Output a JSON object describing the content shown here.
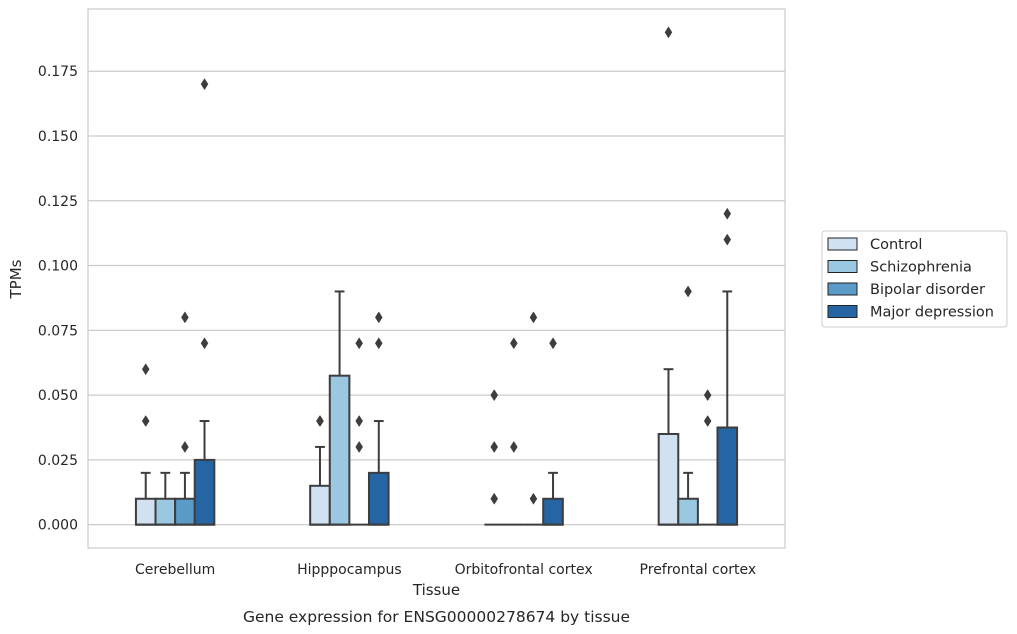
{
  "caption": "Gene expression for ENSG00000278674 by tissue",
  "chart_data": {
    "type": "box",
    "xlabel": "Tissue",
    "ylabel": "TPMs",
    "ylim": [
      -0.009,
      0.199
    ],
    "yticks": [
      "0.000",
      "0.025",
      "0.050",
      "0.075",
      "0.100",
      "0.125",
      "0.150",
      "0.175"
    ],
    "categories": [
      "Cerebellum",
      "Hipppocampus",
      "Orbitofrontal cortex",
      "Prefrontal cortex"
    ],
    "grid": "horizontal",
    "legend_position": "right",
    "series": [
      {
        "name": "Control",
        "color": "#d0e1f2",
        "boxes": [
          {
            "q1": 0,
            "median": 0,
            "q3": 0.01,
            "whisker_low": 0,
            "whisker_high": 0.02,
            "outliers": [
              0.04,
              0.06
            ]
          },
          {
            "q1": 0,
            "median": 0,
            "q3": 0.015,
            "whisker_low": 0,
            "whisker_high": 0.03,
            "outliers": [
              0.04,
              0.04
            ]
          },
          {
            "q1": 0,
            "median": 0,
            "q3": 0,
            "whisker_low": 0,
            "whisker_high": 0,
            "outliers": [
              0.01,
              0.03,
              0.05
            ]
          },
          {
            "q1": 0,
            "median": 0,
            "q3": 0.035,
            "whisker_low": 0,
            "whisker_high": 0.06,
            "outliers": [
              0.19
            ]
          }
        ]
      },
      {
        "name": "Schizophrenia",
        "color": "#9ac8e0",
        "boxes": [
          {
            "q1": 0,
            "median": 0,
            "q3": 0.01,
            "whisker_low": 0,
            "whisker_high": 0.02,
            "outliers": []
          },
          {
            "q1": 0,
            "median": 0,
            "q3": 0.0575,
            "whisker_low": 0,
            "whisker_high": 0.09,
            "outliers": []
          },
          {
            "q1": 0,
            "median": 0,
            "q3": 0,
            "whisker_low": 0,
            "whisker_high": 0,
            "outliers": [
              0.03,
              0.07
            ]
          },
          {
            "q1": 0,
            "median": 0,
            "q3": 0.01,
            "whisker_low": 0,
            "whisker_high": 0.02,
            "outliers": [
              0.09
            ]
          }
        ]
      },
      {
        "name": "Bipolar disorder",
        "color": "#5a9bc8",
        "boxes": [
          {
            "q1": 0,
            "median": 0,
            "q3": 0.01,
            "whisker_low": 0,
            "whisker_high": 0.02,
            "outliers": [
              0.03,
              0.08
            ]
          },
          {
            "q1": 0,
            "median": 0,
            "q3": 0,
            "whisker_low": 0,
            "whisker_high": 0,
            "outliers": [
              0.03,
              0.04,
              0.07
            ]
          },
          {
            "q1": 0,
            "median": 0,
            "q3": 0,
            "whisker_low": 0,
            "whisker_high": 0,
            "outliers": [
              0.01,
              0.08
            ]
          },
          {
            "q1": 0,
            "median": 0,
            "q3": 0,
            "whisker_low": 0,
            "whisker_high": 0,
            "outliers": [
              0.04,
              0.05
            ]
          }
        ]
      },
      {
        "name": "Major depression",
        "color": "#2665a4",
        "boxes": [
          {
            "q1": 0,
            "median": 0,
            "q3": 0.025,
            "whisker_low": 0,
            "whisker_high": 0.04,
            "outliers": [
              0.07,
              0.17
            ]
          },
          {
            "q1": 0,
            "median": 0,
            "q3": 0.02,
            "whisker_low": 0,
            "whisker_high": 0.04,
            "outliers": [
              0.07,
              0.08
            ]
          },
          {
            "q1": 0,
            "median": 0,
            "q3": 0.01,
            "whisker_low": 0,
            "whisker_high": 0.02,
            "outliers": [
              0.07
            ]
          },
          {
            "q1": 0,
            "median": 0,
            "q3": 0.0375,
            "whisker_low": 0,
            "whisker_high": 0.09,
            "outliers": [
              0.11,
              0.12
            ]
          }
        ]
      }
    ]
  }
}
